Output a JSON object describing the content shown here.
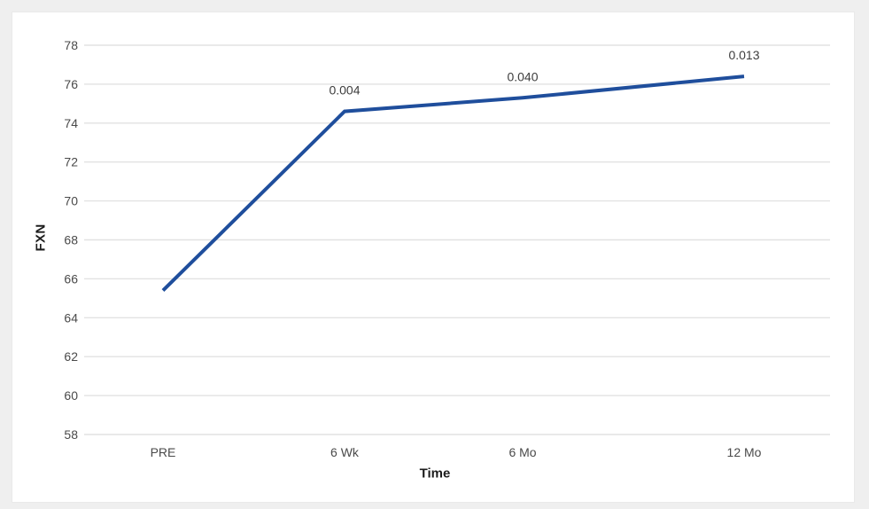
{
  "chart_data": {
    "type": "line",
    "title": "",
    "xlabel": "Time",
    "ylabel": "FXN",
    "categories": [
      "PRE",
      "6 Wk",
      "6 Mo",
      "12 Mo"
    ],
    "series": [
      {
        "name": "FXN",
        "values": [
          65.4,
          74.6,
          75.3,
          76.4
        ],
        "point_labels": [
          "",
          "0.004",
          "0.040",
          "0.013"
        ]
      }
    ],
    "ylim": [
      58,
      78
    ],
    "y_tick_step": 2,
    "y_ticks": [
      58,
      60,
      62,
      64,
      66,
      68,
      70,
      72,
      74,
      76,
      78
    ],
    "grid": true,
    "legend": false,
    "colors": {
      "line": "#1f4e9c",
      "gridline": "#e2e2e2",
      "tick_text": "#4a4a4a",
      "annotation_text": "#3d3d3d",
      "axis_title_text": "#1c1c1c",
      "panel_background": "#ffffff",
      "outer_background": "#efefef"
    }
  }
}
